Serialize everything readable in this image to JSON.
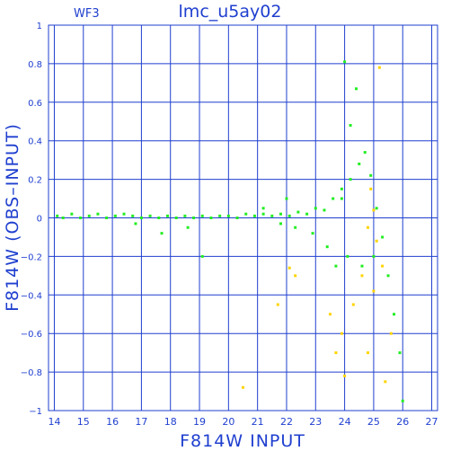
{
  "chart_data": {
    "type": "scatter",
    "title": "lmc_u5ay02",
    "panel_label": "WF3",
    "xlabel": "F814W  INPUT",
    "ylabel": "F814W  (OBS–INPUT)",
    "xlim": [
      13.8,
      27.2
    ],
    "ylim": [
      -1,
      1
    ],
    "x_ticks": [
      14,
      15,
      16,
      17,
      18,
      19,
      20,
      21,
      22,
      23,
      24,
      25,
      26,
      27
    ],
    "y_ticks": [
      1,
      0.8,
      0.6,
      0.4,
      0.2,
      0,
      -0.2,
      -0.4,
      -0.6,
      -0.8,
      -1
    ],
    "y_tick_labels": [
      "1",
      "0.8",
      "0.6",
      "0.4",
      "0.2",
      "0",
      "−0.2",
      "−0.4",
      "−0.6",
      "−0.8",
      "−1"
    ],
    "grid": true,
    "series": [
      {
        "color": "#22ee22",
        "points": [
          [
            14.1,
            0.01
          ],
          [
            14.3,
            0.0
          ],
          [
            14.6,
            0.02
          ],
          [
            14.9,
            0.0
          ],
          [
            15.2,
            0.01
          ],
          [
            15.5,
            0.02
          ],
          [
            15.8,
            0.0
          ],
          [
            16.1,
            0.01
          ],
          [
            16.4,
            0.02
          ],
          [
            16.7,
            0.01
          ],
          [
            17.0,
            0.0
          ],
          [
            17.3,
            0.01
          ],
          [
            17.6,
            0.0
          ],
          [
            17.9,
            0.01
          ],
          [
            18.2,
            0.0
          ],
          [
            18.5,
            0.01
          ],
          [
            18.8,
            0.0
          ],
          [
            19.1,
            0.01
          ],
          [
            19.4,
            0.0
          ],
          [
            19.7,
            0.01
          ],
          [
            20.0,
            0.01
          ],
          [
            20.3,
            0.0
          ],
          [
            20.6,
            0.02
          ],
          [
            20.9,
            0.01
          ],
          [
            21.2,
            0.02
          ],
          [
            21.5,
            0.01
          ],
          [
            21.8,
            0.02
          ],
          [
            22.1,
            0.01
          ],
          [
            22.4,
            0.03
          ],
          [
            22.7,
            0.02
          ],
          [
            23.0,
            0.05
          ],
          [
            23.3,
            0.04
          ],
          [
            23.6,
            0.1
          ],
          [
            23.9,
            0.15
          ],
          [
            24.2,
            0.2
          ],
          [
            24.5,
            0.28
          ],
          [
            24.7,
            0.34
          ],
          [
            24.9,
            0.22
          ],
          [
            25.1,
            0.05
          ],
          [
            25.3,
            -0.1
          ],
          [
            25.5,
            -0.3
          ],
          [
            25.7,
            -0.5
          ],
          [
            25.9,
            -0.7
          ],
          [
            26.0,
            -0.95
          ],
          [
            24.0,
            0.81
          ],
          [
            24.4,
            0.67
          ],
          [
            24.2,
            0.48
          ],
          [
            23.9,
            0.1
          ],
          [
            23.4,
            -0.15
          ],
          [
            22.9,
            -0.08
          ],
          [
            22.3,
            -0.05
          ],
          [
            21.8,
            -0.03
          ],
          [
            25.0,
            -0.2
          ],
          [
            24.6,
            -0.25
          ],
          [
            24.1,
            -0.2
          ],
          [
            23.7,
            -0.25
          ],
          [
            19.1,
            -0.2
          ],
          [
            18.6,
            -0.05
          ],
          [
            16.8,
            -0.03
          ],
          [
            17.7,
            -0.08
          ],
          [
            22.0,
            0.1
          ],
          [
            21.2,
            0.05
          ]
        ]
      },
      {
        "color": "#ffd400",
        "points": [
          [
            25.2,
            0.78
          ],
          [
            24.9,
            0.15
          ],
          [
            25.0,
            0.04
          ],
          [
            24.8,
            -0.05
          ],
          [
            25.1,
            -0.12
          ],
          [
            25.3,
            -0.25
          ],
          [
            24.6,
            -0.3
          ],
          [
            24.3,
            -0.45
          ],
          [
            25.6,
            -0.6
          ],
          [
            23.7,
            -0.7
          ],
          [
            24.0,
            -0.82
          ],
          [
            22.1,
            -0.26
          ],
          [
            21.7,
            -0.45
          ],
          [
            22.3,
            -0.3
          ],
          [
            23.5,
            -0.5
          ],
          [
            24.8,
            -0.7
          ],
          [
            25.4,
            -0.85
          ],
          [
            20.5,
            -0.88
          ],
          [
            23.9,
            -0.6
          ],
          [
            25.0,
            -0.38
          ]
        ]
      }
    ]
  }
}
